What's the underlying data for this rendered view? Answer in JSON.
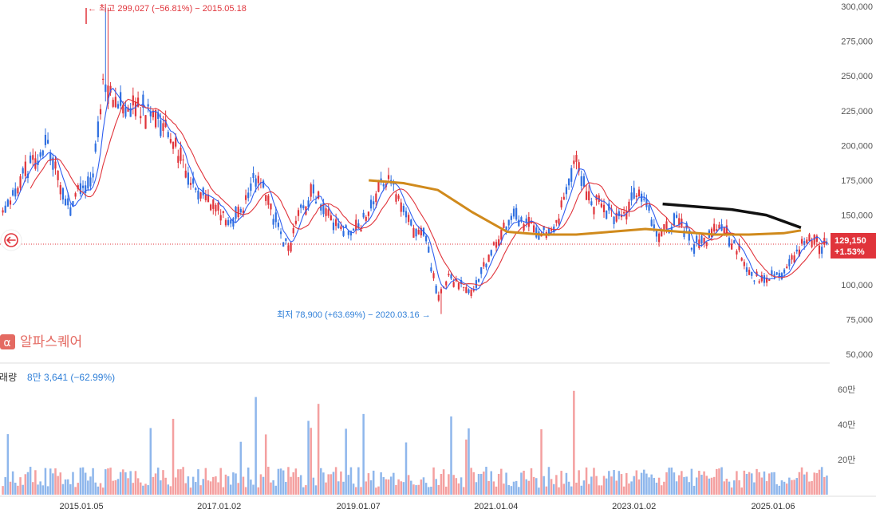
{
  "brand": {
    "name": "알파스퀘어"
  },
  "colors": {
    "up": "#e0343b",
    "down": "#2f6fe0",
    "ma_fast": "#2f5ff0",
    "ma_mid": "#e0343b",
    "ma_long": "#d08a1c",
    "ma_black": "#111111",
    "vol_up": "#f4a0a0",
    "vol_down": "#8fb7ec",
    "badge": "#e0343b"
  },
  "annotations": {
    "high": "← 최고 299,027 (−56.81%) − 2015.05.18",
    "low": "최저 78,900 (+63.69%) − 2020.03.16 →"
  },
  "last_price": {
    "price": "129,150",
    "change": "+1.53%",
    "value": 129150
  },
  "volume_header": {
    "label": "거래량",
    "value": "8만 3,641 (−62.99%)"
  },
  "chart_data": {
    "type": "candlestick",
    "price_axis": {
      "ylim": [
        50000,
        300000
      ],
      "ticks": [
        300000,
        275000,
        250000,
        225000,
        200000,
        175000,
        150000,
        125000,
        100000,
        75000,
        50000
      ],
      "tick_labels": [
        "300,000",
        "275,000",
        "250,000",
        "225,000",
        "200,000",
        "175,000",
        "150,000",
        "",
        "100,000",
        "75,000",
        "50,000"
      ]
    },
    "volume_axis": {
      "ylim": [
        0,
        700000
      ],
      "ticks": [
        600000,
        400000,
        200000
      ],
      "tick_labels": [
        "60만",
        "40만",
        "20만"
      ]
    },
    "x_axis": {
      "range": [
        "2013-11",
        "2025-11"
      ],
      "ticks": [
        "2015-01-05",
        "2017-01-02",
        "2019-01-07",
        "2021-01-04",
        "2023-01-02",
        "2025-01-06"
      ],
      "tick_labels": [
        "2015.01.05",
        "2017.01.02",
        "2019.01.07",
        "2021.01.04",
        "2023.01.02",
        "2025.01.06"
      ]
    },
    "price_path": [
      [
        "2013-11",
        150000
      ],
      [
        "2014-01",
        160000
      ],
      [
        "2014-03",
        178000
      ],
      [
        "2014-05",
        190000
      ],
      [
        "2014-07",
        205000
      ],
      [
        "2014-09",
        175000
      ],
      [
        "2014-11",
        155000
      ],
      [
        "2015-01",
        170000
      ],
      [
        "2015-03",
        175000
      ],
      [
        "2015-05",
        250000
      ],
      [
        "2015-07",
        235000
      ],
      [
        "2015-09",
        225000
      ],
      [
        "2015-11",
        228000
      ],
      [
        "2016-01",
        222000
      ],
      [
        "2016-03",
        215000
      ],
      [
        "2016-05",
        205000
      ],
      [
        "2016-07",
        185000
      ],
      [
        "2016-09",
        170000
      ],
      [
        "2016-11",
        160000
      ],
      [
        "2017-01",
        152000
      ],
      [
        "2017-03",
        145000
      ],
      [
        "2017-05",
        150000
      ],
      [
        "2017-07",
        180000
      ],
      [
        "2017-09",
        163000
      ],
      [
        "2017-11",
        145000
      ],
      [
        "2018-01",
        125000
      ],
      [
        "2018-03",
        150000
      ],
      [
        "2018-05",
        165000
      ],
      [
        "2018-07",
        160000
      ],
      [
        "2018-09",
        145000
      ],
      [
        "2018-11",
        138000
      ],
      [
        "2019-01",
        140000
      ],
      [
        "2019-03",
        150000
      ],
      [
        "2019-05",
        175000
      ],
      [
        "2019-07",
        172000
      ],
      [
        "2019-09",
        155000
      ],
      [
        "2019-11",
        138000
      ],
      [
        "2020-01",
        132000
      ],
      [
        "2020-03",
        88000
      ],
      [
        "2020-05",
        106000
      ],
      [
        "2020-07",
        100000
      ],
      [
        "2020-09",
        92000
      ],
      [
        "2020-11",
        113000
      ],
      [
        "2021-01",
        128000
      ],
      [
        "2021-03",
        145000
      ],
      [
        "2021-05",
        150000
      ],
      [
        "2021-07",
        142000
      ],
      [
        "2021-09",
        138000
      ],
      [
        "2021-11",
        135000
      ],
      [
        "2022-01",
        162000
      ],
      [
        "2022-03",
        190000
      ],
      [
        "2022-05",
        165000
      ],
      [
        "2022-07",
        155000
      ],
      [
        "2022-09",
        152000
      ],
      [
        "2022-11",
        145000
      ],
      [
        "2023-01",
        165000
      ],
      [
        "2023-03",
        160000
      ],
      [
        "2023-05",
        133000
      ],
      [
        "2023-07",
        140000
      ],
      [
        "2023-09",
        150000
      ],
      [
        "2023-11",
        128000
      ],
      [
        "2024-01",
        130000
      ],
      [
        "2024-03",
        138000
      ],
      [
        "2024-05",
        138000
      ],
      [
        "2024-07",
        125000
      ],
      [
        "2024-09",
        108000
      ],
      [
        "2024-11",
        103000
      ],
      [
        "2025-01",
        105000
      ],
      [
        "2025-03",
        110000
      ],
      [
        "2025-05",
        122000
      ],
      [
        "2025-06",
        129150
      ]
    ],
    "high": {
      "date": "2015-05-18",
      "value": 299027
    },
    "low": {
      "date": "2020-03-16",
      "value": 78900
    },
    "moving_averages": [
      {
        "id": "ma-long-gold",
        "points": [
          [
            "2019-03",
            175000
          ],
          [
            "2019-09",
            173000
          ],
          [
            "2020-03",
            168000
          ],
          [
            "2020-09",
            152000
          ],
          [
            "2021-03",
            138000
          ],
          [
            "2021-09",
            136000
          ],
          [
            "2022-03",
            136000
          ],
          [
            "2022-09",
            138000
          ],
          [
            "2023-03",
            140000
          ],
          [
            "2023-09",
            138000
          ],
          [
            "2024-03",
            136000
          ],
          [
            "2024-09",
            136000
          ],
          [
            "2025-03",
            137000
          ],
          [
            "2025-06",
            139000
          ]
        ]
      },
      {
        "id": "ma-black",
        "points": [
          [
            "2023-06",
            158000
          ],
          [
            "2023-12",
            156000
          ],
          [
            "2024-06",
            154000
          ],
          [
            "2024-12",
            150000
          ],
          [
            "2025-06",
            141000
          ]
        ]
      }
    ]
  }
}
